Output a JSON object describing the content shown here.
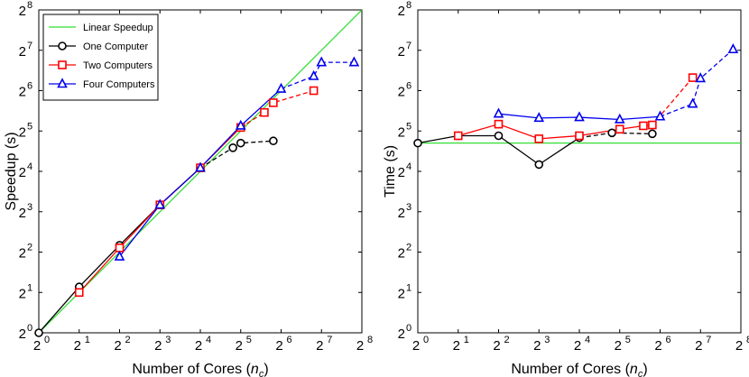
{
  "chart_data": [
    {
      "type": "line",
      "xlabel_main": "Number of Cores (",
      "xlabel_var": "n",
      "xlabel_sub": "c",
      "xlabel_end": ")",
      "ylabel": "Speedup (s)",
      "x_scale": "log2",
      "y_scale": "log2",
      "xlim_exp": [
        0,
        8
      ],
      "ylim_exp": [
        0,
        8
      ],
      "x_ticks": [
        {
          "base": "2",
          "exp": "0"
        },
        {
          "base": "2",
          "exp": "1"
        },
        {
          "base": "2",
          "exp": "2"
        },
        {
          "base": "2",
          "exp": "3"
        },
        {
          "base": "2",
          "exp": "4"
        },
        {
          "base": "2",
          "exp": "5"
        },
        {
          "base": "2",
          "exp": "6"
        },
        {
          "base": "2",
          "exp": "7"
        },
        {
          "base": "2",
          "exp": "8"
        }
      ],
      "y_ticks": [
        {
          "base": "2",
          "exp": "0"
        },
        {
          "base": "2",
          "exp": "1"
        },
        {
          "base": "2",
          "exp": "2"
        },
        {
          "base": "2",
          "exp": "3"
        },
        {
          "base": "2",
          "exp": "4"
        },
        {
          "base": "2",
          "exp": "5"
        },
        {
          "base": "2",
          "exp": "6"
        },
        {
          "base": "2",
          "exp": "7"
        },
        {
          "base": "2",
          "exp": "8"
        }
      ],
      "grid": false,
      "legend_placement": "top-left",
      "series": [
        {
          "name": "Linear Speedup",
          "color": "#33dd33",
          "marker": "none",
          "x": [
            1,
            256
          ],
          "y": [
            1,
            256
          ],
          "dashed_from": null
        },
        {
          "name": "One Computer",
          "color": "#000000",
          "marker": "circle",
          "x": [
            1,
            2,
            4,
            8,
            16,
            28,
            32,
            56
          ],
          "y": [
            1,
            2.2,
            4.5,
            9,
            17,
            24,
            26,
            27
          ],
          "dashed_from": 4
        },
        {
          "name": "Two Computers",
          "color": "#ff0000",
          "marker": "square",
          "x": [
            2,
            4,
            8,
            16,
            32,
            48,
            56,
            112
          ],
          "y": [
            2,
            4.3,
            9,
            17,
            34,
            44,
            52,
            64
          ],
          "dashed_from": 4
        },
        {
          "name": "Four Computers",
          "color": "#0000ee",
          "marker": "triangle",
          "x": [
            4,
            8,
            16,
            32,
            64,
            112,
            128,
            224
          ],
          "y": [
            3.7,
            9,
            17,
            35,
            66,
            82,
            104,
            104
          ],
          "dashed_from": 4
        }
      ]
    },
    {
      "type": "line",
      "xlabel_main": "Number of Cores (",
      "xlabel_var": "n",
      "xlabel_sub": "c",
      "xlabel_end": ")",
      "ylabel": "Time (s)",
      "x_scale": "log2",
      "y_scale": "log2",
      "xlim_exp": [
        0,
        8
      ],
      "ylim_exp": [
        0,
        8
      ],
      "x_ticks": [
        {
          "base": "2",
          "exp": "0"
        },
        {
          "base": "2",
          "exp": "1"
        },
        {
          "base": "2",
          "exp": "2"
        },
        {
          "base": "2",
          "exp": "3"
        },
        {
          "base": "2",
          "exp": "4"
        },
        {
          "base": "2",
          "exp": "5"
        },
        {
          "base": "2",
          "exp": "6"
        },
        {
          "base": "2",
          "exp": "7"
        },
        {
          "base": "2",
          "exp": "8"
        }
      ],
      "y_ticks": [
        {
          "base": "2",
          "exp": "0"
        },
        {
          "base": "2",
          "exp": "1"
        },
        {
          "base": "2",
          "exp": "2"
        },
        {
          "base": "2",
          "exp": "3"
        },
        {
          "base": "2",
          "exp": "4"
        },
        {
          "base": "2",
          "exp": "5"
        },
        {
          "base": "2",
          "exp": "6"
        },
        {
          "base": "2",
          "exp": "7"
        },
        {
          "base": "2",
          "exp": "8"
        }
      ],
      "grid": false,
      "series": [
        {
          "name": "Linear Speedup",
          "color": "#33dd33",
          "marker": "none",
          "x": [
            1,
            256
          ],
          "y": [
            26,
            26
          ],
          "dashed_from": null
        },
        {
          "name": "One Computer",
          "color": "#000000",
          "marker": "circle",
          "x": [
            1,
            2,
            4,
            8,
            16,
            28,
            56
          ],
          "y": [
            26,
            29.5,
            29.5,
            18,
            28.5,
            31,
            30.5
          ],
          "dashed_from": 4
        },
        {
          "name": "Two Computers",
          "color": "#ff0000",
          "marker": "square",
          "x": [
            2,
            4,
            8,
            16,
            32,
            48,
            56,
            112
          ],
          "y": [
            29.5,
            36,
            28,
            29.5,
            33,
            35,
            35.5,
            80
          ],
          "dashed_from": 6
        },
        {
          "name": "Four Computers",
          "color": "#0000ee",
          "marker": "triangle",
          "x": [
            4,
            8,
            16,
            32,
            64,
            112,
            128,
            224
          ],
          "y": [
            43,
            40,
            40.5,
            39,
            41,
            51,
            79,
            130
          ],
          "dashed_from": 4
        }
      ]
    }
  ]
}
